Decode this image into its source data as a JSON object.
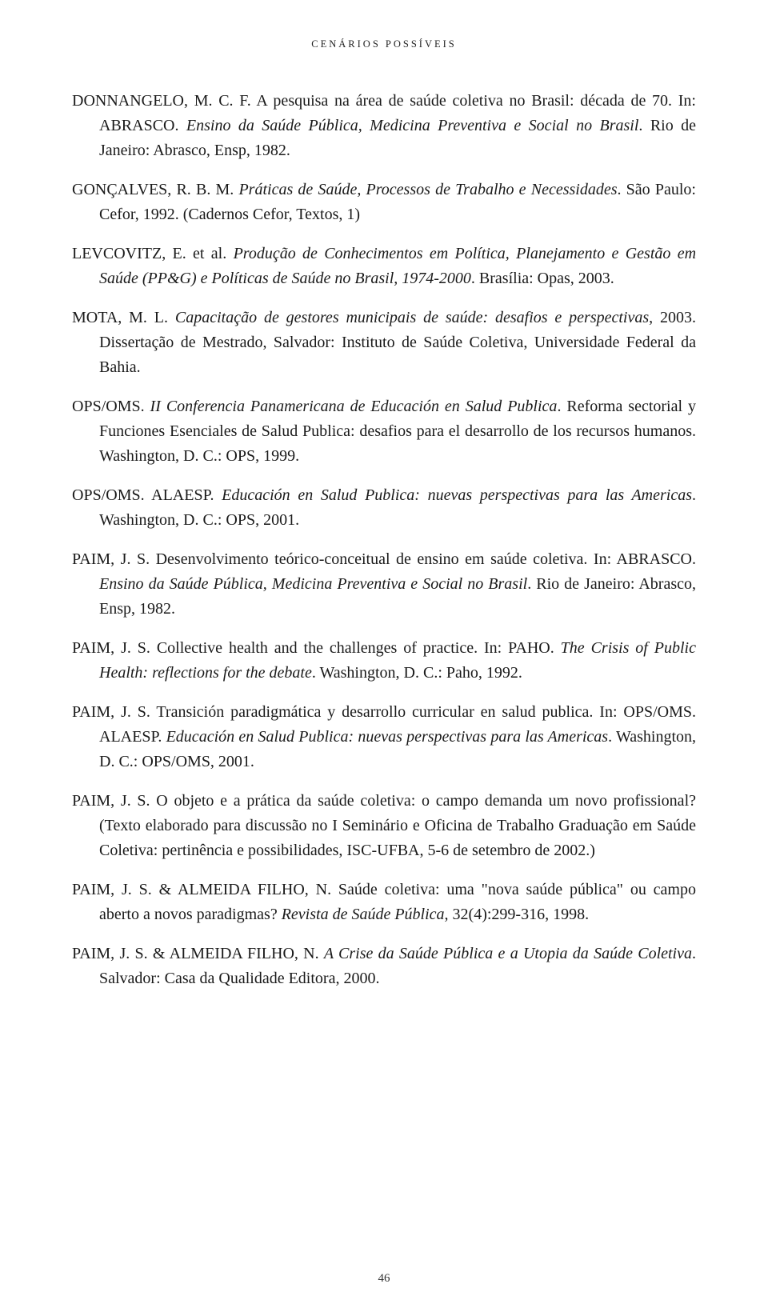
{
  "header": "CENÁRIOS POSSÍVEIS",
  "page_number": "46",
  "refs": [
    {
      "segments": [
        {
          "t": "DONNANGELO, M. C. F. A pesquisa na área de saúde coletiva no Brasil: década de 70. In: ABRASCO. ",
          "i": false
        },
        {
          "t": "Ensino da Saúde Pública, Medicina Preventiva e Social no Brasil",
          "i": true
        },
        {
          "t": ". Rio de Janeiro: Abrasco, Ensp, 1982.",
          "i": false
        }
      ]
    },
    {
      "segments": [
        {
          "t": "GONÇALVES, R. B. M. ",
          "i": false
        },
        {
          "t": "Práticas de Saúde, Processos de Trabalho e Necessidades",
          "i": true
        },
        {
          "t": ". São Paulo: Cefor, 1992. (Cadernos Cefor, Textos, 1)",
          "i": false
        }
      ]
    },
    {
      "segments": [
        {
          "t": "LEVCOVITZ, E. et al. ",
          "i": false
        },
        {
          "t": "Produção de Conhecimentos em Política, Planejamento e Gestão em Saúde (PP&G) e Políticas de Saúde no Brasil, 1974-2000",
          "i": true
        },
        {
          "t": ". Brasília: Opas, 2003.",
          "i": false
        }
      ]
    },
    {
      "segments": [
        {
          "t": "MOTA, M. L. ",
          "i": false
        },
        {
          "t": "Capacitação de gestores municipais de saúde: desafios e perspectivas",
          "i": true
        },
        {
          "t": ", 2003. Dissertação de Mestrado, Salvador: Instituto de Saúde Coletiva, Universidade Federal da Bahia.",
          "i": false
        }
      ]
    },
    {
      "segments": [
        {
          "t": "OPS/OMS. ",
          "i": false
        },
        {
          "t": "II Conferencia Panamericana de Educación en Salud Publica",
          "i": true
        },
        {
          "t": ". Reforma sectorial y Funciones Esenciales de Salud Publica: desafios para el desarrollo de los recursos humanos. Washington, D. C.: OPS, 1999.",
          "i": false
        }
      ]
    },
    {
      "segments": [
        {
          "t": "OPS/OMS. ALAESP. ",
          "i": false
        },
        {
          "t": "Educación en Salud Publica: nuevas perspectivas para las Americas",
          "i": true
        },
        {
          "t": ". Washington, D. C.: OPS, 2001.",
          "i": false
        }
      ]
    },
    {
      "segments": [
        {
          "t": "PAIM, J. S. Desenvolvimento teórico-conceitual de ensino em saúde coletiva. In: ABRASCO. ",
          "i": false
        },
        {
          "t": "Ensino da Saúde Pública, Medicina Preventiva e Social no Brasil",
          "i": true
        },
        {
          "t": ". Rio de Janeiro: Abrasco, Ensp, 1982.",
          "i": false
        }
      ]
    },
    {
      "segments": [
        {
          "t": "PAIM, J. S. Collective health and the challenges of practice. In: PAHO. ",
          "i": false
        },
        {
          "t": "The Crisis of Public Health: reflections for the debate",
          "i": true
        },
        {
          "t": ". Washington, D. C.: Paho,  1992.",
          "i": false
        }
      ]
    },
    {
      "segments": [
        {
          "t": "PAIM, J. S. Transición paradigmática y desarrollo curricular en salud publica. In: OPS/OMS. ALAESP. ",
          "i": false
        },
        {
          "t": "Educación en Salud Publica: nuevas perspectivas para las Americas",
          "i": true
        },
        {
          "t": ". Washington, D. C.: OPS/OMS, 2001.",
          "i": false
        }
      ]
    },
    {
      "segments": [
        {
          "t": "PAIM, J. S. O objeto e a prática da saúde coletiva: o campo demanda um novo profissional? (Texto elaborado para discussão no I Seminário e Oficina de Trabalho Graduação em Saúde Coletiva: pertinência e possibilidades, ISC-UFBA, 5-6 de setembro de 2002.)",
          "i": false
        }
      ]
    },
    {
      "segments": [
        {
          "t": "PAIM, J. S. & ALMEIDA FILHO, N. Saúde coletiva: uma \"nova saúde pública\" ou campo aberto a novos paradigmas? ",
          "i": false
        },
        {
          "t": "Revista de Saúde Pública",
          "i": true
        },
        {
          "t": ", 32(4):299-316, 1998.",
          "i": false
        }
      ]
    },
    {
      "segments": [
        {
          "t": "PAIM, J. S. & ALMEIDA FILHO, N. ",
          "i": false
        },
        {
          "t": "A Crise da Saúde Pública e a Utopia da Saúde Coletiva",
          "i": true
        },
        {
          "t": ". Salvador: Casa da Qualidade Editora, 2000.",
          "i": false
        }
      ]
    }
  ]
}
